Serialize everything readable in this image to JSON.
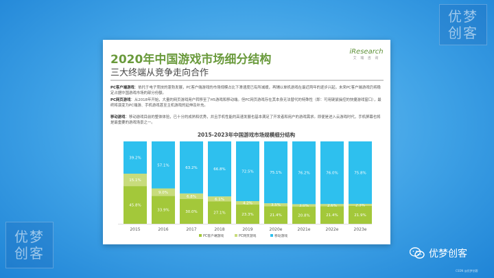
{
  "brand": {
    "line1": "优梦",
    "line2": "创客"
  },
  "card": {
    "title": "2020年中国游戏市场细分结构",
    "subtitle": "三大终端从竞争走向合作",
    "logo": "iResearch",
    "logo_sub": "艾 瑞 咨 询",
    "paragraphs": [
      {
        "head": "PC客户端游戏",
        "text": "：依托于电子竞技的蓬勃发展，PC客户端游戏的市场规模占比下滑速度已有所减缓，再辅以单机游戏在最近两年的逐步兴起，未来PC客户端游戏仍将稳定占据中国游戏市场的部分份额。"
      },
      {
        "head": "PC网页游戏",
        "text": "：从2018年开始，大量的网页游戏用户转移至了H5游戏和移动端。但PC网页游戏存在其本身无法替代的特殊性（即：可用键鼠操控的快捷游戏窗口），最终将演变为PC端游、手机游戏甚至主机游戏的延伸及补充。"
      },
      {
        "head": "移动游戏",
        "text": "：移动游戏目前的整体体验，已十分的成熟和优秀，并且手机性能的高速发展也基本满足了开发者和用户的游戏需求。即便是进入云游戏时代，手机屏幕也将是最重要的游戏场景之一。"
      }
    ]
  },
  "chart_data": {
    "type": "bar",
    "stacked": true,
    "normalized": true,
    "title": "2015-2023年中国游戏市场规模细分结构",
    "categories": [
      "2015",
      "2016",
      "2017",
      "2018",
      "2019",
      "2020e",
      "2021e",
      "2022e",
      "2023e"
    ],
    "series": [
      {
        "name": "PC客户端游戏",
        "color": "#a3c83a",
        "values": [
          45.8,
          33.9,
          30.0,
          27.1,
          23.3,
          21.4,
          20.8,
          21.4,
          21.9
        ]
      },
      {
        "name": "PC网页游戏",
        "color": "#c8dc7c",
        "values": [
          15.1,
          9.0,
          6.8,
          6.1,
          4.2,
          3.5,
          3.0,
          2.6,
          2.3
        ]
      },
      {
        "name": "移动游戏",
        "color": "#2ec0ee",
        "values": [
          39.2,
          57.1,
          63.2,
          66.8,
          72.5,
          75.1,
          76.2,
          76.0,
          75.8
        ]
      }
    ],
    "ylim": [
      0,
      100
    ],
    "legend": "bottom"
  },
  "footer": {
    "wechat_label": "优梦创客",
    "source": "CSDN @优梦创客"
  }
}
